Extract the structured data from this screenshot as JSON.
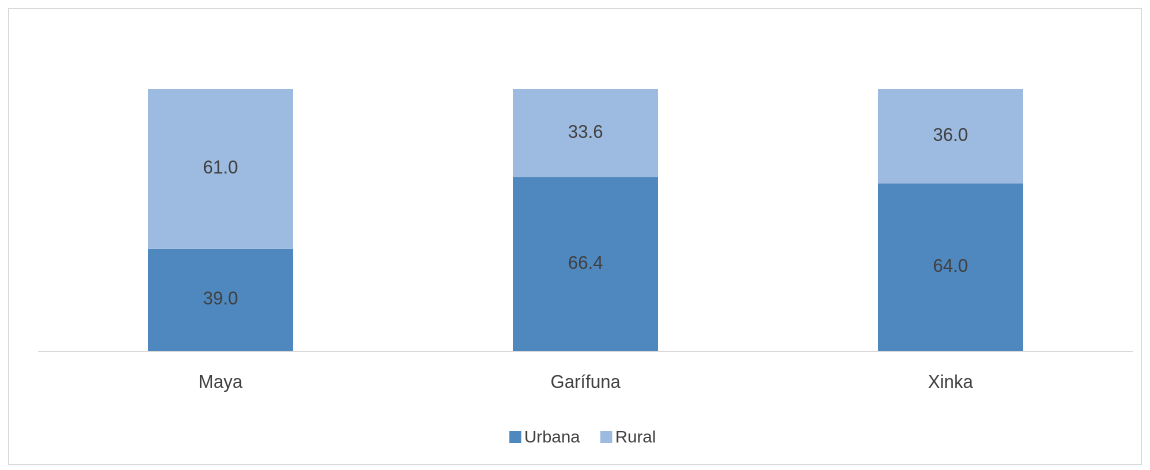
{
  "chart_data": {
    "type": "stacked-bar",
    "categories": [
      "Maya",
      "Garífuna",
      "Xinka"
    ],
    "series": [
      {
        "name": "Urbana",
        "color": "#4f88bf",
        "values": [
          39,
          66.4,
          64
        ],
        "value_labels": [
          "39.0",
          "66.4",
          "64.0"
        ]
      },
      {
        "name": "Rural",
        "color": "#9dbbe0",
        "values": [
          61,
          33.6,
          36
        ],
        "value_labels": [
          "61.0",
          "33.6",
          "36.0"
        ]
      }
    ],
    "ylim": [
      0,
      100
    ],
    "legend": "bottom"
  }
}
